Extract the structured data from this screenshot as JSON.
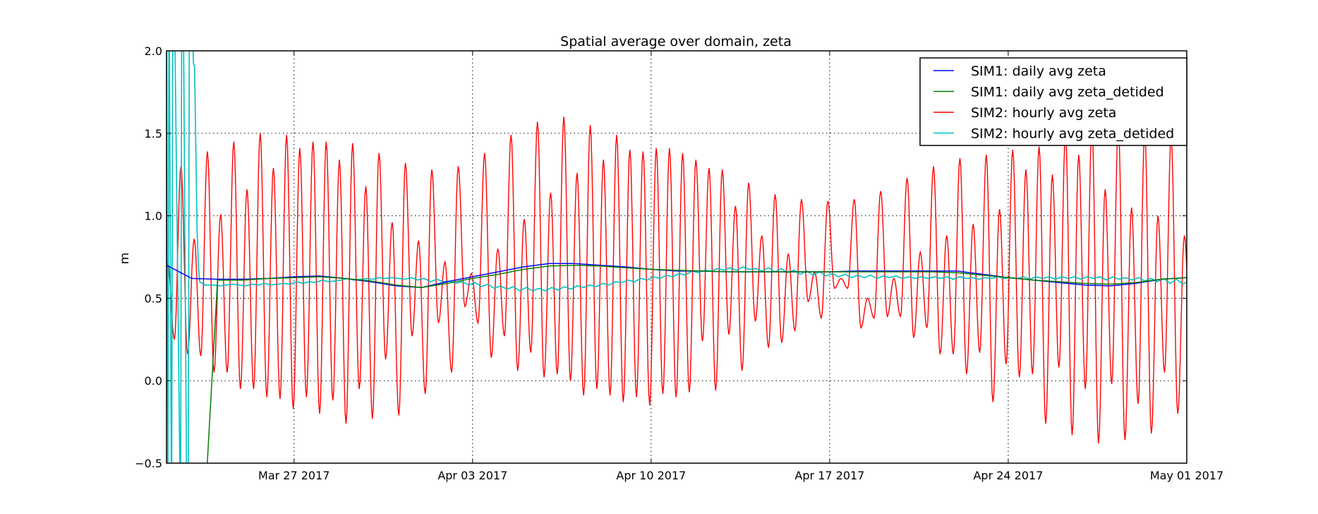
{
  "chart_data": {
    "type": "line",
    "title": "Spatial average over domain, zeta",
    "xlabel": "",
    "ylabel": "m",
    "x_units": "days since Mar 22 2017 00:00",
    "xlim": [
      0,
      40
    ],
    "ylim": [
      -0.5,
      2.0
    ],
    "grid": true,
    "legend_position": "top-right",
    "x_ticks": [
      {
        "value": 5,
        "label": "Mar 27 2017"
      },
      {
        "value": 12,
        "label": "Apr 03 2017"
      },
      {
        "value": 19,
        "label": "Apr 10 2017"
      },
      {
        "value": 26,
        "label": "Apr 17 2017"
      },
      {
        "value": 33,
        "label": "Apr 24 2017"
      },
      {
        "value": 40,
        "label": "May 01 2017"
      }
    ],
    "y_ticks": [
      {
        "value": 2.0,
        "label": "2.0"
      },
      {
        "value": 1.5,
        "label": "1.5"
      },
      {
        "value": 1.0,
        "label": "1.0"
      },
      {
        "value": 0.5,
        "label": "0.5"
      },
      {
        "value": 0.0,
        "label": "0.0"
      },
      {
        "value": -0.5,
        "label": "−0.5"
      }
    ],
    "series": [
      {
        "name": "SIM1: daily avg zeta",
        "color": "#0000ff",
        "x": [
          0,
          1,
          2,
          3,
          4,
          5,
          6,
          7,
          8,
          9,
          10,
          11,
          12,
          13,
          14,
          15,
          16,
          17,
          18,
          19,
          20,
          21,
          22,
          23,
          24,
          25,
          26,
          27,
          28,
          29,
          30,
          31,
          32,
          33,
          34,
          35,
          36,
          37,
          38,
          39,
          40
        ],
        "values": [
          0.7,
          0.62,
          0.615,
          0.615,
          0.62,
          0.63,
          0.635,
          0.62,
          0.6,
          0.575,
          0.565,
          0.6,
          0.63,
          0.66,
          0.69,
          0.71,
          0.71,
          0.7,
          0.69,
          0.675,
          0.665,
          0.665,
          0.66,
          0.66,
          0.66,
          0.66,
          0.66,
          0.665,
          0.665,
          0.665,
          0.665,
          0.665,
          0.645,
          0.625,
          0.61,
          0.595,
          0.58,
          0.575,
          0.59,
          0.615,
          0.625
        ]
      },
      {
        "name": "SIM1: daily avg zeta_detided",
        "color": "#008000",
        "x": [
          1.6,
          2,
          3,
          4,
          5,
          6,
          7,
          8,
          9,
          10,
          11,
          12,
          13,
          14,
          15,
          16,
          17,
          18,
          19,
          20,
          21,
          22,
          23,
          24,
          25,
          26,
          27,
          28,
          29,
          30,
          31,
          32,
          33,
          34,
          35,
          36,
          37,
          38,
          39,
          40
        ],
        "values": [
          -0.5,
          0.61,
          0.61,
          0.62,
          0.625,
          0.63,
          0.62,
          0.605,
          0.58,
          0.565,
          0.59,
          0.62,
          0.645,
          0.675,
          0.695,
          0.7,
          0.695,
          0.685,
          0.675,
          0.67,
          0.665,
          0.66,
          0.66,
          0.66,
          0.66,
          0.66,
          0.66,
          0.66,
          0.66,
          0.66,
          0.655,
          0.64,
          0.625,
          0.61,
          0.6,
          0.59,
          0.585,
          0.595,
          0.615,
          0.625
        ]
      },
      {
        "name": "SIM2: hourly avg zeta",
        "color": "#ff0000",
        "encoding": "alternating tidal extremes (high, low, high, low, ...) starting at t0 with spacing dt days",
        "t0": 0.05,
        "dt": 0.2588,
        "extremes": [
          0.72,
          0.25,
          1.3,
          0.16,
          0.86,
          0.15,
          1.39,
          0.05,
          1.01,
          0.05,
          1.45,
          -0.05,
          1.16,
          -0.05,
          1.5,
          -0.1,
          1.29,
          -0.11,
          1.49,
          -0.17,
          1.41,
          -0.1,
          1.45,
          -0.2,
          1.45,
          -0.12,
          1.34,
          -0.26,
          1.44,
          -0.05,
          1.18,
          -0.23,
          1.38,
          0.13,
          0.96,
          -0.21,
          1.32,
          0.27,
          0.85,
          -0.08,
          1.28,
          0.35,
          0.72,
          0.05,
          1.3,
          0.45,
          0.65,
          0.35,
          1.38,
          0.14,
          0.8,
          0.27,
          1.49,
          0.06,
          0.98,
          0.17,
          1.57,
          0.02,
          1.14,
          0.04,
          1.6,
          0.0,
          1.26,
          -0.09,
          1.55,
          -0.05,
          1.34,
          -0.09,
          1.49,
          -0.13,
          1.4,
          -0.1,
          1.39,
          -0.15,
          1.41,
          -0.08,
          1.41,
          -0.1,
          1.38,
          -0.07,
          1.34,
          0.24,
          1.29,
          -0.06,
          1.28,
          0.28,
          1.06,
          0.06,
          1.2,
          0.36,
          0.88,
          0.2,
          1.13,
          0.23,
          0.77,
          0.3,
          1.1,
          0.48,
          0.66,
          0.38,
          1.09,
          0.56,
          0.62,
          0.56,
          1.1,
          0.32,
          0.5,
          0.38,
          1.15,
          0.39,
          0.62,
          0.39,
          1.23,
          0.26,
          0.78,
          0.32,
          1.3,
          0.16,
          0.88,
          0.16,
          1.35,
          0.04,
          0.95,
          0.17,
          1.37,
          -0.13,
          1.04,
          0.1,
          1.4,
          0.02,
          1.28,
          0.04,
          1.42,
          -0.26,
          1.25,
          0.08,
          1.5,
          -0.33,
          1.37,
          -0.05,
          1.55,
          -0.38,
          1.16,
          -0.02,
          1.55,
          -0.36,
          1.05,
          -0.14,
          1.52,
          -0.32,
          1.0,
          0.05,
          1.48,
          -0.2,
          0.88,
          0.22,
          1.45,
          -0.06,
          0.8,
          0.31,
          1.45,
          0.31
        ]
      },
      {
        "name": "SIM2: hourly avg zeta_detided",
        "color": "#00bfbf",
        "spinup": {
          "description": "large oscillations during first ~1.2 days exceed axis range",
          "x": [
            0,
            0.05,
            0.1,
            0.2,
            0.25,
            0.3,
            0.55,
            0.6,
            0.65,
            0.8,
            0.85,
            0.9,
            1.0,
            1.05,
            1.1,
            1.2,
            1.25,
            1.3,
            1.5,
            1.6
          ],
          "values": [
            2.5,
            -0.9,
            2.5,
            -0.9,
            2.5,
            2.5,
            -0.9,
            2.5,
            2.5,
            -0.9,
            -0.9,
            2.5,
            2.5,
            1.93,
            1.9,
            0.9,
            0.7,
            0.6,
            0.58,
            0.58
          ]
        },
        "x_start": 1.6,
        "dx": 0.25,
        "values": [
          0.58,
          0.575,
          0.58,
          0.585,
          0.58,
          0.575,
          0.585,
          0.58,
          0.59,
          0.58,
          0.585,
          0.59,
          0.585,
          0.6,
          0.59,
          0.6,
          0.595,
          0.61,
          0.6,
          0.605,
          0.61,
          0.62,
          0.61,
          0.615,
          0.62,
          0.615,
          0.625,
          0.62,
          0.625,
          0.62,
          0.615,
          0.625,
          0.61,
          0.62,
          0.6,
          0.615,
          0.6,
          0.605,
          0.59,
          0.6,
          0.58,
          0.595,
          0.57,
          0.585,
          0.56,
          0.575,
          0.555,
          0.57,
          0.545,
          0.565,
          0.545,
          0.56,
          0.545,
          0.565,
          0.55,
          0.57,
          0.555,
          0.575,
          0.565,
          0.58,
          0.57,
          0.59,
          0.58,
          0.6,
          0.595,
          0.61,
          0.6,
          0.62,
          0.61,
          0.63,
          0.62,
          0.64,
          0.63,
          0.65,
          0.64,
          0.665,
          0.655,
          0.67,
          0.665,
          0.68,
          0.67,
          0.685,
          0.67,
          0.69,
          0.675,
          0.68,
          0.665,
          0.685,
          0.66,
          0.68,
          0.655,
          0.67,
          0.645,
          0.665,
          0.64,
          0.66,
          0.635,
          0.65,
          0.63,
          0.645,
          0.625,
          0.64,
          0.625,
          0.64,
          0.62,
          0.635,
          0.625,
          0.635,
          0.62,
          0.63,
          0.62,
          0.63,
          0.62,
          0.63,
          0.62,
          0.63,
          0.615,
          0.63,
          0.62,
          0.625,
          0.615,
          0.625,
          0.62,
          0.63,
          0.62,
          0.625,
          0.62,
          0.63,
          0.615,
          0.63,
          0.62,
          0.63,
          0.615,
          0.63,
          0.62,
          0.63,
          0.615,
          0.63,
          0.62,
          0.63,
          0.61,
          0.63,
          0.615,
          0.625,
          0.61,
          0.625,
          0.605,
          0.62,
          0.6,
          0.62,
          0.59,
          0.615,
          0.585,
          0.61,
          0.58,
          0.605,
          0.575,
          0.6,
          0.57,
          0.595,
          0.565,
          0.59,
          0.56,
          0.585,
          0.555,
          0.58,
          0.55,
          0.575,
          0.55,
          0.575,
          0.555,
          0.585,
          0.56,
          0.59,
          0.57,
          0.595,
          0.575,
          0.6,
          0.59,
          0.6,
          0.595,
          0.6,
          0.59,
          0.6
        ]
      }
    ]
  }
}
